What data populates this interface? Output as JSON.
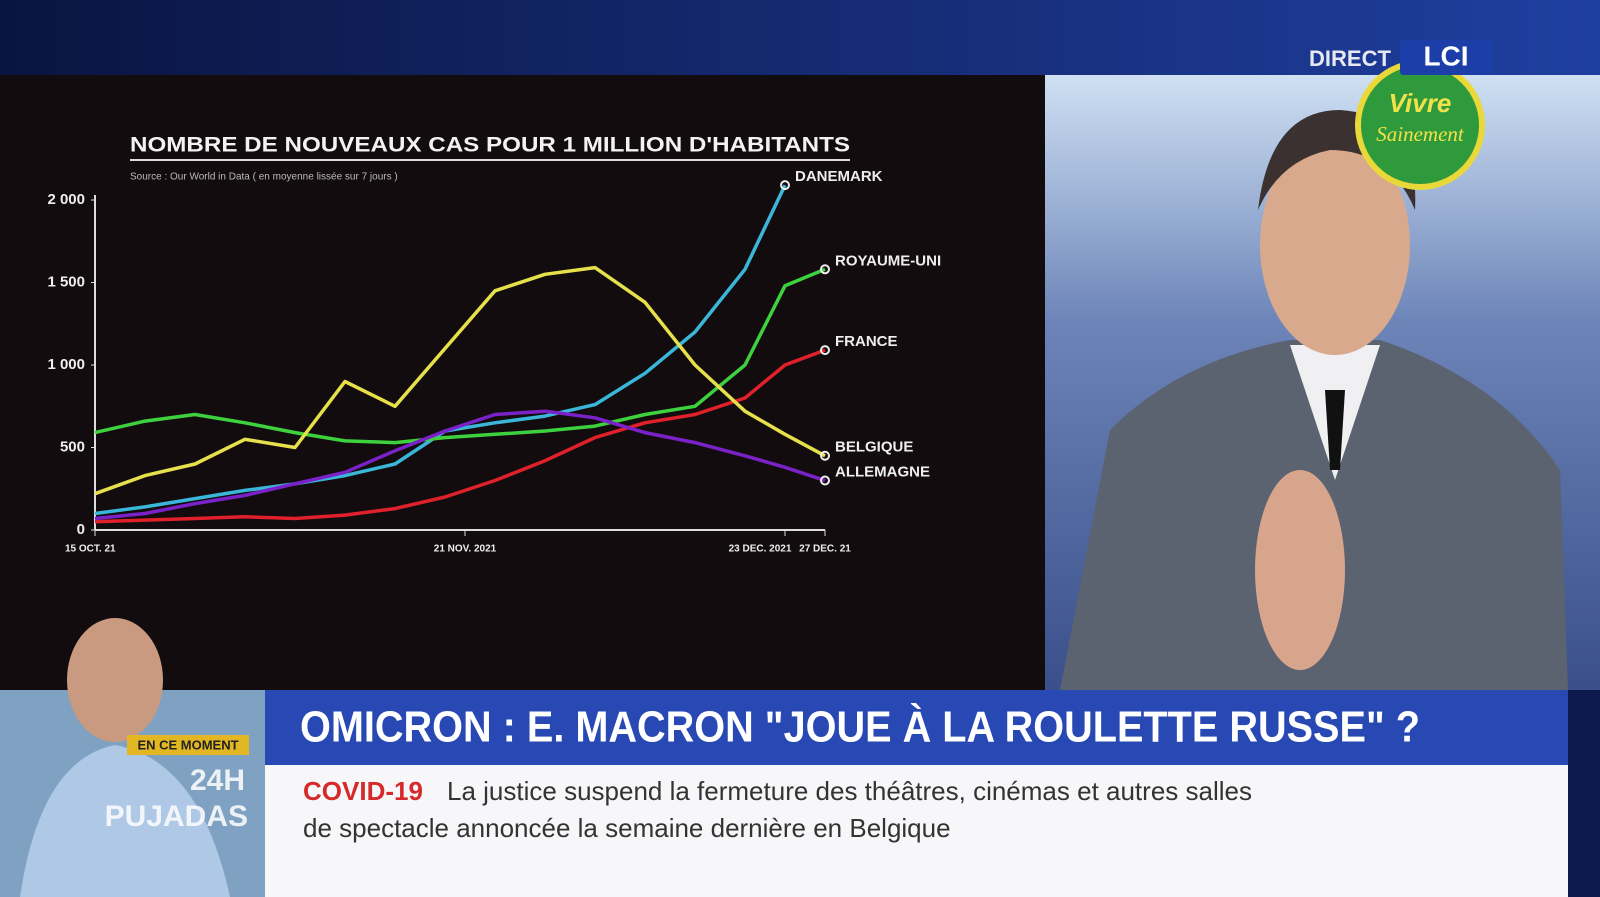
{
  "channel": {
    "live": "DIRECT",
    "logo": "LCI",
    "badge_line1": "Vivre",
    "badge_line2": "Sainement"
  },
  "inset": {
    "tag": "EN CE MOMENT",
    "show_line1": "24H",
    "show_line2": "PUJADAS"
  },
  "banner": {
    "headline": "OMICRON : E. MACRON \"JOUE À LA ROULETTE RUSSE\" ?",
    "topic": "COVID-19",
    "ticker_line1": "La justice suspend la fermeture des théâtres, cinémas et autres salles",
    "ticker_line2": "de spectacle annoncée la semaine dernière en Belgique"
  },
  "chart_data": {
    "type": "line",
    "title": "NOMBRE DE NOUVEAUX CAS POUR 1 MILLION D'HABITANTS",
    "subtitle": "Source : Our World in Data ( en moyenne lissée sur 7 jours )",
    "x": [
      "2021-10-15",
      "2021-10-20",
      "2021-10-25",
      "2021-10-30",
      "2021-11-04",
      "2021-11-09",
      "2021-11-14",
      "2021-11-19",
      "2021-11-24",
      "2021-11-29",
      "2021-12-04",
      "2021-12-09",
      "2021-12-14",
      "2021-12-19",
      "2021-12-23",
      "2021-12-27"
    ],
    "xlim": [
      "2021-10-15",
      "2021-12-27"
    ],
    "xticks": [
      {
        "value": "2021-10-15",
        "label": "15 OCT. 21"
      },
      {
        "value": "2021-11-21",
        "label": "21 NOV. 2021"
      },
      {
        "value": "2021-12-23",
        "label": "23 DEC. 2021"
      },
      {
        "value": "2021-12-27",
        "label": "27 DEC. 21"
      }
    ],
    "ylim": [
      0,
      2000
    ],
    "yticks": [
      0,
      500,
      {
        "value": 1000,
        "label": "1 000"
      },
      {
        "value": 1500,
        "label": "1 500"
      },
      {
        "value": 2000,
        "label": "2 000"
      }
    ],
    "series": [
      {
        "name": "DANEMARK",
        "color": "#3ab6d8",
        "values": [
          100,
          140,
          190,
          240,
          280,
          330,
          400,
          600,
          650,
          690,
          760,
          950,
          1200,
          1580,
          2090,
          null
        ]
      },
      {
        "name": "ROYAUME-UNI",
        "color": "#3ed13e",
        "values": [
          590,
          660,
          700,
          650,
          590,
          540,
          530,
          560,
          580,
          600,
          630,
          700,
          750,
          1000,
          1480,
          1580
        ]
      },
      {
        "name": "FRANCE",
        "color": "#e0202a",
        "values": [
          50,
          60,
          70,
          80,
          70,
          90,
          130,
          200,
          300,
          420,
          560,
          650,
          700,
          800,
          1000,
          1090
        ]
      },
      {
        "name": "BELGIQUE",
        "color": "#e6e04a",
        "values": [
          220,
          330,
          400,
          550,
          500,
          900,
          750,
          1100,
          1450,
          1550,
          1590,
          1380,
          1000,
          720,
          580,
          450
        ]
      },
      {
        "name": "ALLEMAGNE",
        "color": "#7a22c8",
        "values": [
          70,
          100,
          160,
          210,
          280,
          350,
          480,
          600,
          700,
          720,
          680,
          590,
          530,
          450,
          380,
          300
        ]
      }
    ]
  }
}
